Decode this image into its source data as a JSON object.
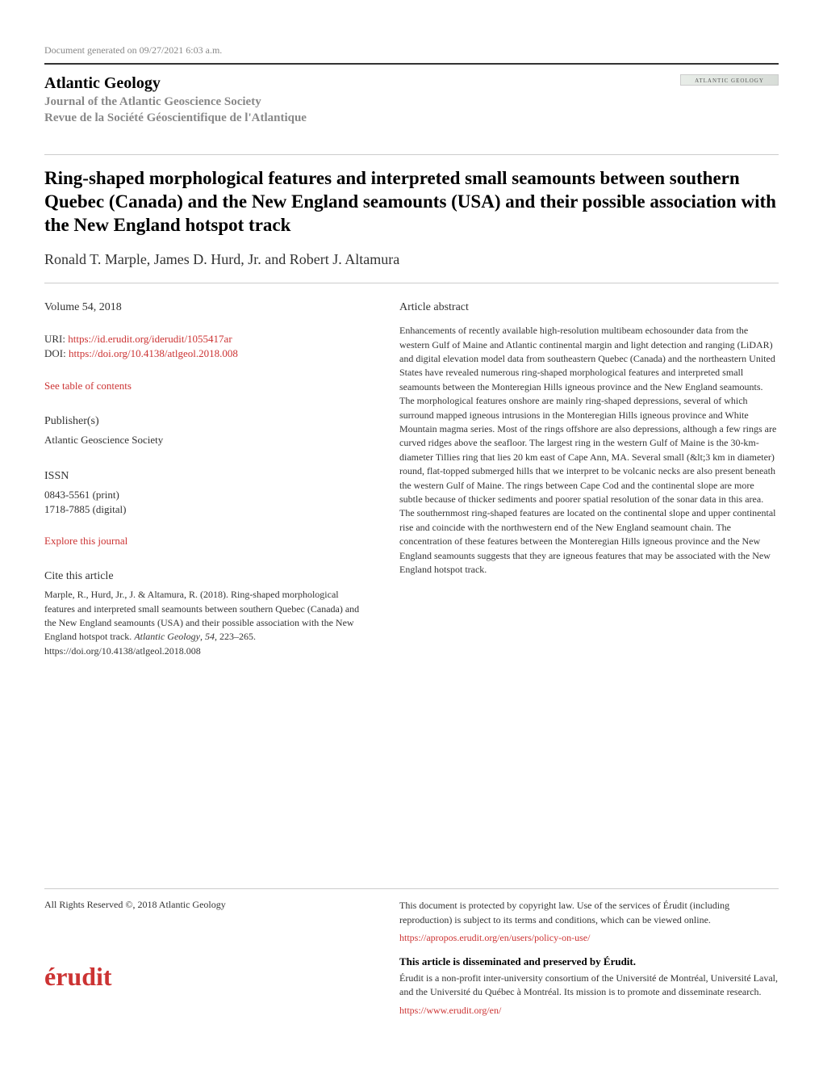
{
  "generated": "Document generated on 09/27/2021 6:03 a.m.",
  "journal": {
    "name": "Atlantic Geology",
    "subtitle_en": "Journal of the Atlantic Geoscience Society",
    "subtitle_fr": "Revue de la Société Géoscientifique de l'Atlantique",
    "logo_text": "ATLANTIC GEOLOGY"
  },
  "article": {
    "title": "Ring-shaped morphological features and interpreted small seamounts between southern Quebec (Canada) and the New England seamounts (USA) and their possible association with the New England hotspot track",
    "authors": "Ronald T. Marple, James D. Hurd, Jr. and Robert J. Altamura"
  },
  "left": {
    "volume": "Volume 54, 2018",
    "uri_label": "URI: ",
    "uri": "https://id.erudit.org/iderudit/1055417ar",
    "doi_label": "DOI: ",
    "doi": "https://doi.org/10.4138/atlgeol.2018.008",
    "toc_link": "See table of contents",
    "publisher_label": "Publisher(s)",
    "publisher": "Atlantic Geoscience Society",
    "issn_label": "ISSN",
    "issn_print": "0843-5561 (print)",
    "issn_digital": "1718-7885 (digital)",
    "explore_link": "Explore this journal",
    "cite_label": "Cite this article",
    "cite_body_1": "Marple, R., Hurd, Jr., J. & Altamura, R. (2018). Ring-shaped morphological features and interpreted small seamounts between southern Quebec (Canada) and the New England seamounts (USA) and their possible association with the New England hotspot track. ",
    "cite_body_italic": "Atlantic Geology",
    "cite_body_2": ", ",
    "cite_body_italic2": "54",
    "cite_body_3": ", 223–265. https://doi.org/10.4138/atlgeol.2018.008"
  },
  "right": {
    "abstract_label": "Article abstract",
    "abstract": "Enhancements of recently available high-resolution multibeam echosounder data from the western Gulf of Maine and Atlantic continental margin and light detection and ranging (LiDAR) and digital elevation model data from southeastern Quebec (Canada) and the northeastern United States have revealed numerous ring-shaped morphological features and interpreted small seamounts between the Monteregian Hills igneous province and the New England seamounts. The morphological features onshore are mainly ring-shaped depressions, several of which surround mapped igneous intrusions in the Monteregian Hills igneous province and White Mountain magma series. Most of the rings offshore are also depressions, although a few rings are curved ridges above the seafloor. The largest ring in the western Gulf of Maine is the 30-km-diameter Tillies ring that lies 20 km east of Cape Ann, MA. Several small (&lt;3 km in diameter) round, flat-topped submerged hills that we interpret to be volcanic necks are also present beneath the western Gulf of Maine. The rings between Cape Cod and the continental slope are more subtle because of thicker sediments and poorer spatial resolution of the sonar data in this area. The southernmost ring-shaped features are located on the continental slope and upper continental rise and coincide with the northwestern end of the New England seamount chain. The concentration of these features between the Monteregian Hills igneous province and the New England seamounts suggests that they are igneous features that may be associated with the New England hotspot track."
  },
  "footer": {
    "copyright": "All Rights Reserved ©, 2018 Atlantic Geology",
    "protect_text": "This document is protected by copyright law. Use of the services of Érudit (including reproduction) is subject to its terms and conditions, which can be viewed online.",
    "policy_link": "https://apropos.erudit.org/en/users/policy-on-use/",
    "diss_title": "This article is disseminated and preserved by Érudit.",
    "diss_body": "Érudit is a non-profit inter-university consortium of the Université de Montréal, Université Laval, and the Université du Québec à Montréal. Its mission is to promote and disseminate research.",
    "erudit_link": "https://www.erudit.org/en/",
    "erudit_logo_text": "érudit"
  },
  "colors": {
    "link": "#cc3333",
    "text": "#333333",
    "muted": "#888888",
    "rule": "#cccccc",
    "background": "#ffffff"
  }
}
